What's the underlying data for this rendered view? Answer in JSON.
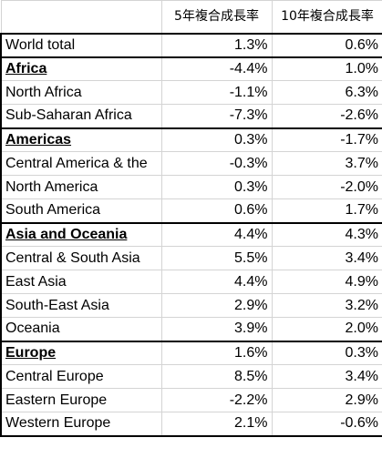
{
  "header": {
    "col_name": "",
    "col_5yr": "5年複合成長率",
    "col_10yr": "10年複合成長率"
  },
  "rows": [
    {
      "name": "World total",
      "cagr5": "1.3%",
      "cagr10": "0.6%"
    },
    {
      "name": "Africa",
      "cagr5": "-4.4%",
      "cagr10": "1.0%"
    },
    {
      "name": "North Africa",
      "cagr5": "-1.1%",
      "cagr10": "6.3%"
    },
    {
      "name": "Sub-Saharan Africa",
      "cagr5": "-7.3%",
      "cagr10": "-2.6%"
    },
    {
      "name": "Americas",
      "cagr5": "0.3%",
      "cagr10": "-1.7%"
    },
    {
      "name": "Central America & the",
      "cagr5": "-0.3%",
      "cagr10": "3.7%"
    },
    {
      "name": "North America",
      "cagr5": "0.3%",
      "cagr10": "-2.0%"
    },
    {
      "name": "South America",
      "cagr5": "0.6%",
      "cagr10": "1.7%"
    },
    {
      "name": "Asia and Oceania",
      "cagr5": "4.4%",
      "cagr10": "4.3%"
    },
    {
      "name": "Central & South Asia",
      "cagr5": "5.5%",
      "cagr10": "3.4%"
    },
    {
      "name": "East Asia",
      "cagr5": "4.4%",
      "cagr10": "4.9%"
    },
    {
      "name": "South-East Asia",
      "cagr5": "2.9%",
      "cagr10": "3.2%"
    },
    {
      "name": "Oceania",
      "cagr5": "3.9%",
      "cagr10": "2.0%"
    },
    {
      "name": "Europe",
      "cagr5": "1.6%",
      "cagr10": "0.3%"
    },
    {
      "name": "Central Europe",
      "cagr5": "8.5%",
      "cagr10": "3.4%"
    },
    {
      "name": "Eastern Europe",
      "cagr5": "-2.2%",
      "cagr10": "2.9%"
    },
    {
      "name": "Western Europe",
      "cagr5": "2.1%",
      "cagr10": "-0.6%"
    }
  ]
}
